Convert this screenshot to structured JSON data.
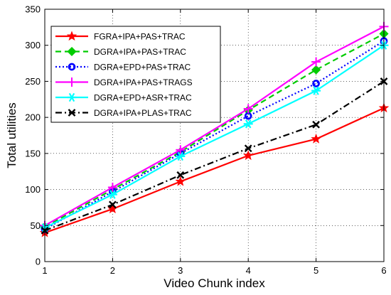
{
  "chart_data": {
    "type": "line",
    "title": "",
    "xlabel": "Video Chunk index",
    "ylabel": "Total utilities",
    "x": [
      1,
      2,
      3,
      4,
      5,
      6
    ],
    "xlim": [
      1,
      6
    ],
    "ylim": [
      0,
      350
    ],
    "xticks": [
      1,
      2,
      3,
      4,
      5,
      6
    ],
    "yticks": [
      0,
      50,
      100,
      150,
      200,
      250,
      300,
      350
    ],
    "grid": true,
    "grid_style": "dotted",
    "legend_position": "top-left",
    "series": [
      {
        "name": "FGRA+IPA+PAS+TRAC",
        "values": [
          40,
          73,
          111,
          147,
          170,
          213
        ],
        "color": "#ff0000",
        "line_style": "solid",
        "marker": "star"
      },
      {
        "name": "DGRA+IPA+PAS+TRAC",
        "values": [
          48,
          100,
          152,
          210,
          266,
          316
        ],
        "color": "#00cc00",
        "line_style": "dashed",
        "marker": "diamond"
      },
      {
        "name": "DGRA+EPD+PAS+TRAC",
        "values": [
          45,
          97,
          150,
          202,
          247,
          306
        ],
        "color": "#0000ff",
        "line_style": "dotted",
        "marker": "circle"
      },
      {
        "name": "DGRA+IPA+PAS+TRAGS",
        "values": [
          50,
          103,
          155,
          212,
          277,
          326
        ],
        "color": "#ff00ff",
        "line_style": "solid",
        "marker": "plus"
      },
      {
        "name": "DGRA+EPD+ASR+TRAC",
        "values": [
          47,
          93,
          146,
          191,
          237,
          300
        ],
        "color": "#00ffff",
        "line_style": "solid",
        "marker": "asterisk"
      },
      {
        "name": "DGRA+IPA+PLAS+TRAC",
        "values": [
          43,
          79,
          120,
          157,
          190,
          250
        ],
        "color": "#000000",
        "line_style": "dashdot",
        "marker": "x"
      }
    ]
  }
}
